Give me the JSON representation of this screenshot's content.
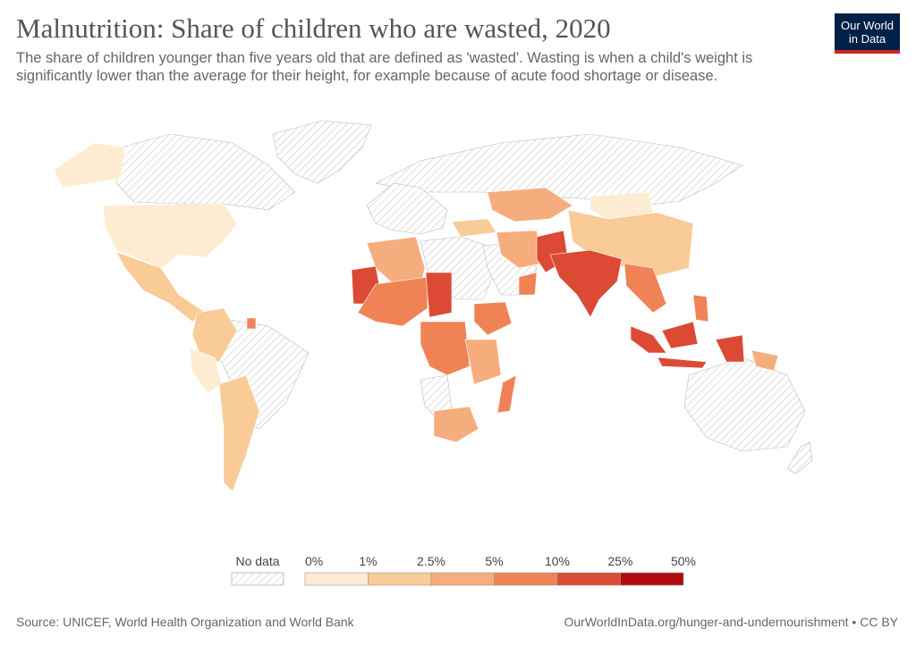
{
  "header": {
    "title": "Malnutrition: Share of children who are wasted, 2020",
    "subtitle": "The share of children younger than five years old that are defined as 'wasted'. Wasting is when a child's weight is significantly lower than the average for their height, for example because of acute food shortage or disease."
  },
  "logo": {
    "line1": "Our World",
    "line2": "in Data",
    "bg": "#002147",
    "accent": "#ce261e"
  },
  "legend": {
    "no_data_label": "No data",
    "bins": [
      {
        "from": "0%",
        "to": "1%",
        "color": "#fdebd2"
      },
      {
        "from": "1%",
        "to": "2.5%",
        "color": "#f8cb97"
      },
      {
        "from": "2.5%",
        "to": "5%",
        "color": "#f6ad7e"
      },
      {
        "from": "5%",
        "to": "10%",
        "color": "#f08356"
      },
      {
        "from": "10%",
        "to": "25%",
        "color": "#dc4a35"
      },
      {
        "from": "25%",
        "to": "50%",
        "color": "#b20c0c"
      }
    ],
    "tick_labels": [
      "0%",
      "1%",
      "2.5%",
      "5%",
      "10%",
      "25%",
      "50%"
    ]
  },
  "footer": {
    "source": "Source: UNICEF, World Health Organization and World Bank",
    "url": "OurWorldInData.org/hunger-and-undernourishment • CC BY"
  },
  "colors": {
    "no_data_hatch": "#cccccc",
    "border": "#ffffff"
  }
}
